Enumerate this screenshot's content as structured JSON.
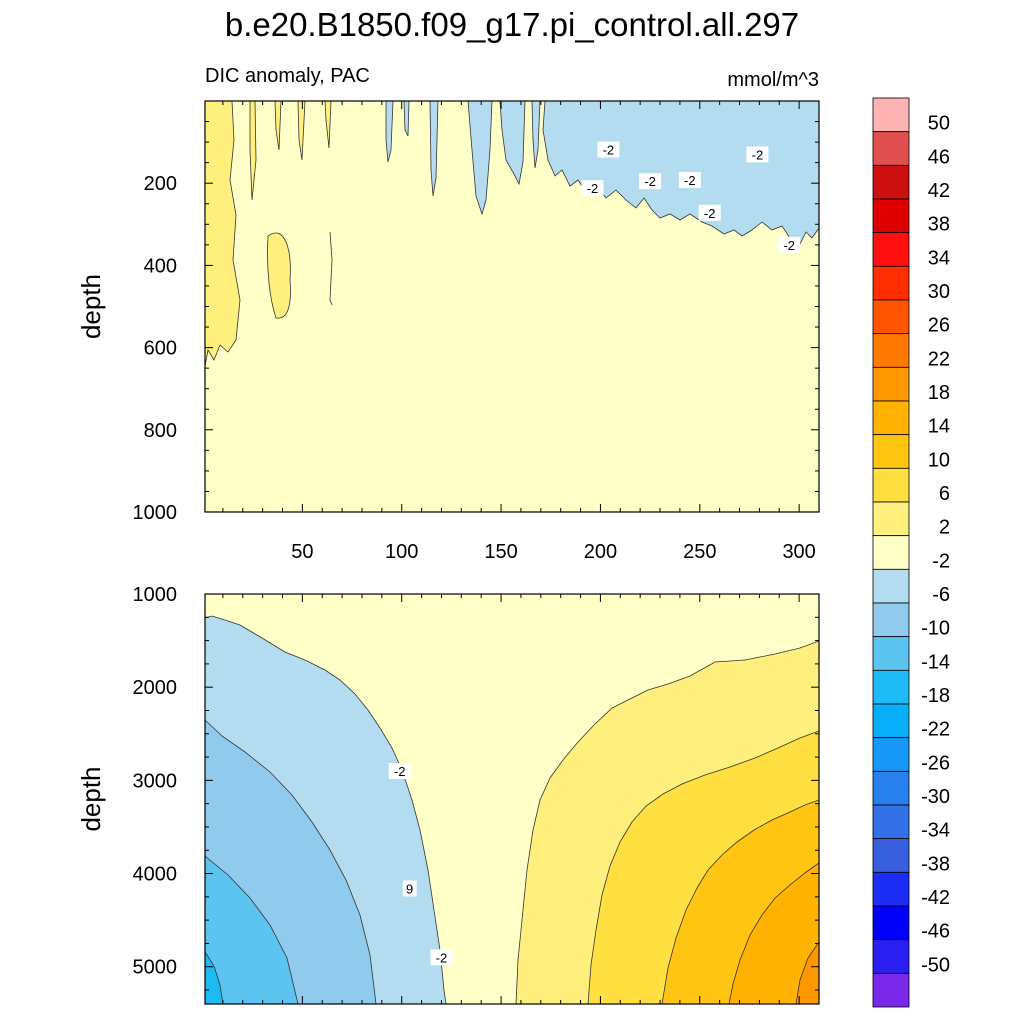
{
  "chart_data": {
    "type": "heatmap",
    "title": "b.e20.B1850.f09_g17.pi_control.all.297",
    "subtitle_left": "DIC anomaly, PAC",
    "subtitle_right": "mmol/m^3",
    "x": {
      "range": [
        1,
        310
      ],
      "ticks": [
        50,
        100,
        150,
        200,
        250,
        300
      ]
    },
    "panels": [
      {
        "name": "upper",
        "ylabel": "depth",
        "ylim": [
          1000,
          0
        ],
        "yticks": [
          200,
          400,
          600,
          800,
          1000
        ],
        "background_level": "-2 to 2",
        "contour_labels": [
          {
            "text": "-2",
            "x": 196,
            "y": 212
          },
          {
            "text": "-2",
            "x": 204,
            "y": 118
          },
          {
            "text": "-2",
            "x": 225,
            "y": 195
          },
          {
            "text": "-2",
            "x": 245,
            "y": 192
          },
          {
            "text": "-2",
            "x": 255,
            "y": 272
          },
          {
            "text": "-2",
            "x": 279,
            "y": 130
          },
          {
            "text": "-2",
            "x": 295,
            "y": 350
          }
        ]
      },
      {
        "name": "lower",
        "ylabel": "depth",
        "ylim": [
          5400,
          1000
        ],
        "yticks": [
          1000,
          2000,
          3000,
          4000,
          5000
        ],
        "contour_labels": [
          {
            "text": "-2",
            "x": 99,
            "y": 2900
          },
          {
            "text": "9",
            "x": 104,
            "y": 4160
          },
          {
            "text": "-2",
            "x": 120,
            "y": 4900
          }
        ]
      }
    ],
    "colorbar": {
      "labels": [
        "50",
        "46",
        "42",
        "38",
        "34",
        "30",
        "26",
        "22",
        "18",
        "14",
        "10",
        "6",
        "2",
        "-2",
        "-6",
        "-10",
        "-14",
        "-18",
        "-22",
        "-26",
        "-30",
        "-34",
        "-38",
        "-42",
        "-46",
        "-50"
      ],
      "colors": [
        "#ffb4b4",
        "#e05050",
        "#cc1010",
        "#e00000",
        "#ff1010",
        "#ff2e00",
        "#ff5500",
        "#ff7800",
        "#ff9700",
        "#ffb200",
        "#ffc512",
        "#ffe040",
        "#fff07e",
        "#ffffc8",
        "#b4dcf0",
        "#90caec",
        "#5cc4f0",
        "#1ebaf6",
        "#08aef8",
        "#1898f8",
        "#2880ee",
        "#3470e6",
        "#3860de",
        "#1c2ef5",
        "#0000f8",
        "#2a1ef0",
        "#7a28ea"
      ]
    }
  }
}
